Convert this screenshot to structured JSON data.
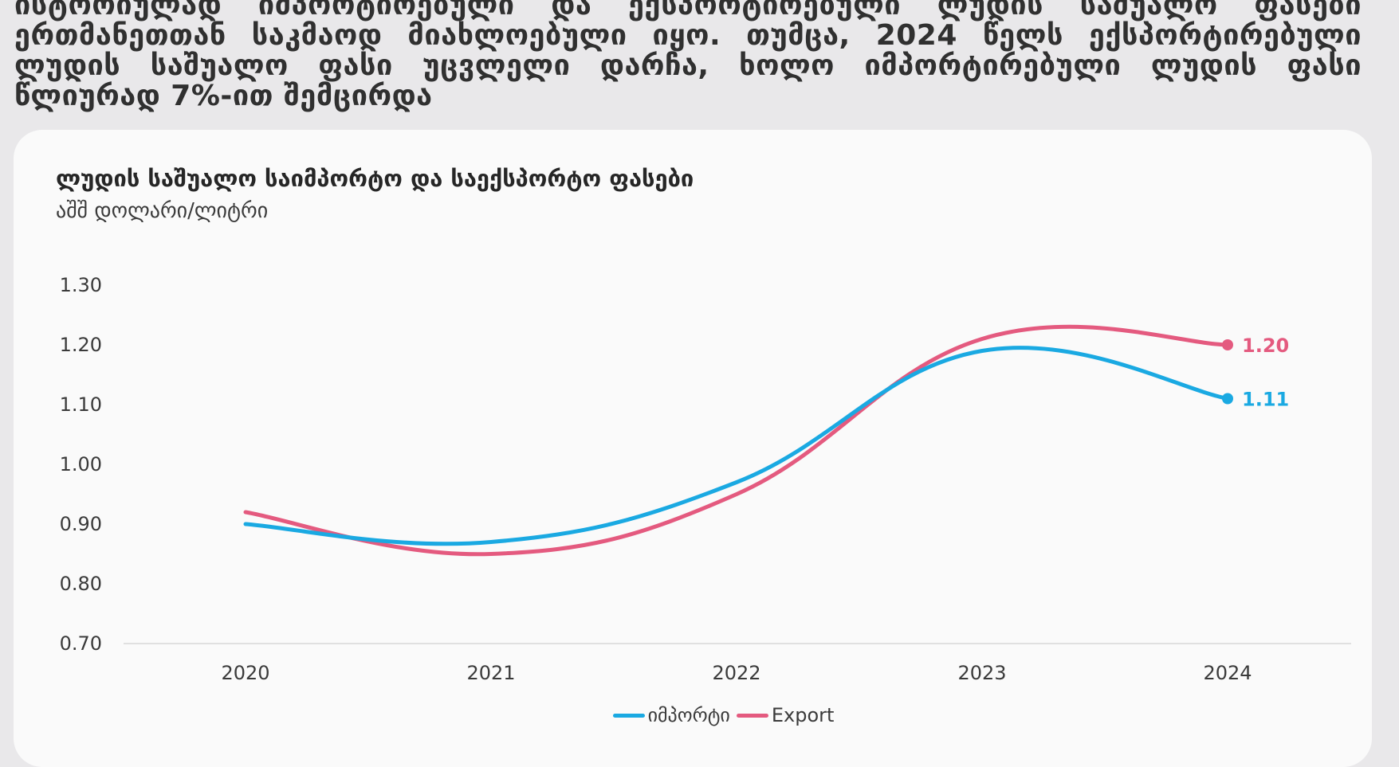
{
  "intro_text": "ისტორიულად იმპორტირებული და ექსპორტირებული ლუდის საშუალო ფასები ერთმანეთთან საკმაოდ მიახლოებული იყო. თუმცა, 2024 წელს ექსპორტირებული ლუდის საშუალო ფასი უცვლელი დარჩა, ხოლო იმპორტირებული ლუდის ფასი წლიურად 7%-ით შემცირდა",
  "colors": {
    "import": "#1aa9e2",
    "export": "#e45a7f",
    "axis": "#d8d8d8",
    "tick": "#3a3a3a"
  },
  "chart_data": {
    "type": "line",
    "title": "ლუდის საშუალო საიმპორტო და საექსპორტო ფასები",
    "subtitle": "აშშ დოლარი/ლიტრი",
    "x": [
      "2020",
      "2021",
      "2022",
      "2023",
      "2024"
    ],
    "ylim": [
      0.7,
      1.3
    ],
    "yticks": [
      "1.30",
      "1.20",
      "1.10",
      "1.00",
      "0.90",
      "0.80",
      "0.70"
    ],
    "series": [
      {
        "name": "იმპორტი",
        "key": "import",
        "values": [
          0.9,
          0.87,
          0.97,
          1.19,
          1.11
        ],
        "end_label": "1.11"
      },
      {
        "name": "Export",
        "key": "export",
        "values": [
          0.92,
          0.85,
          0.95,
          1.21,
          1.2
        ],
        "end_label": "1.20"
      }
    ],
    "grid": false,
    "legend": "bottom-center"
  }
}
